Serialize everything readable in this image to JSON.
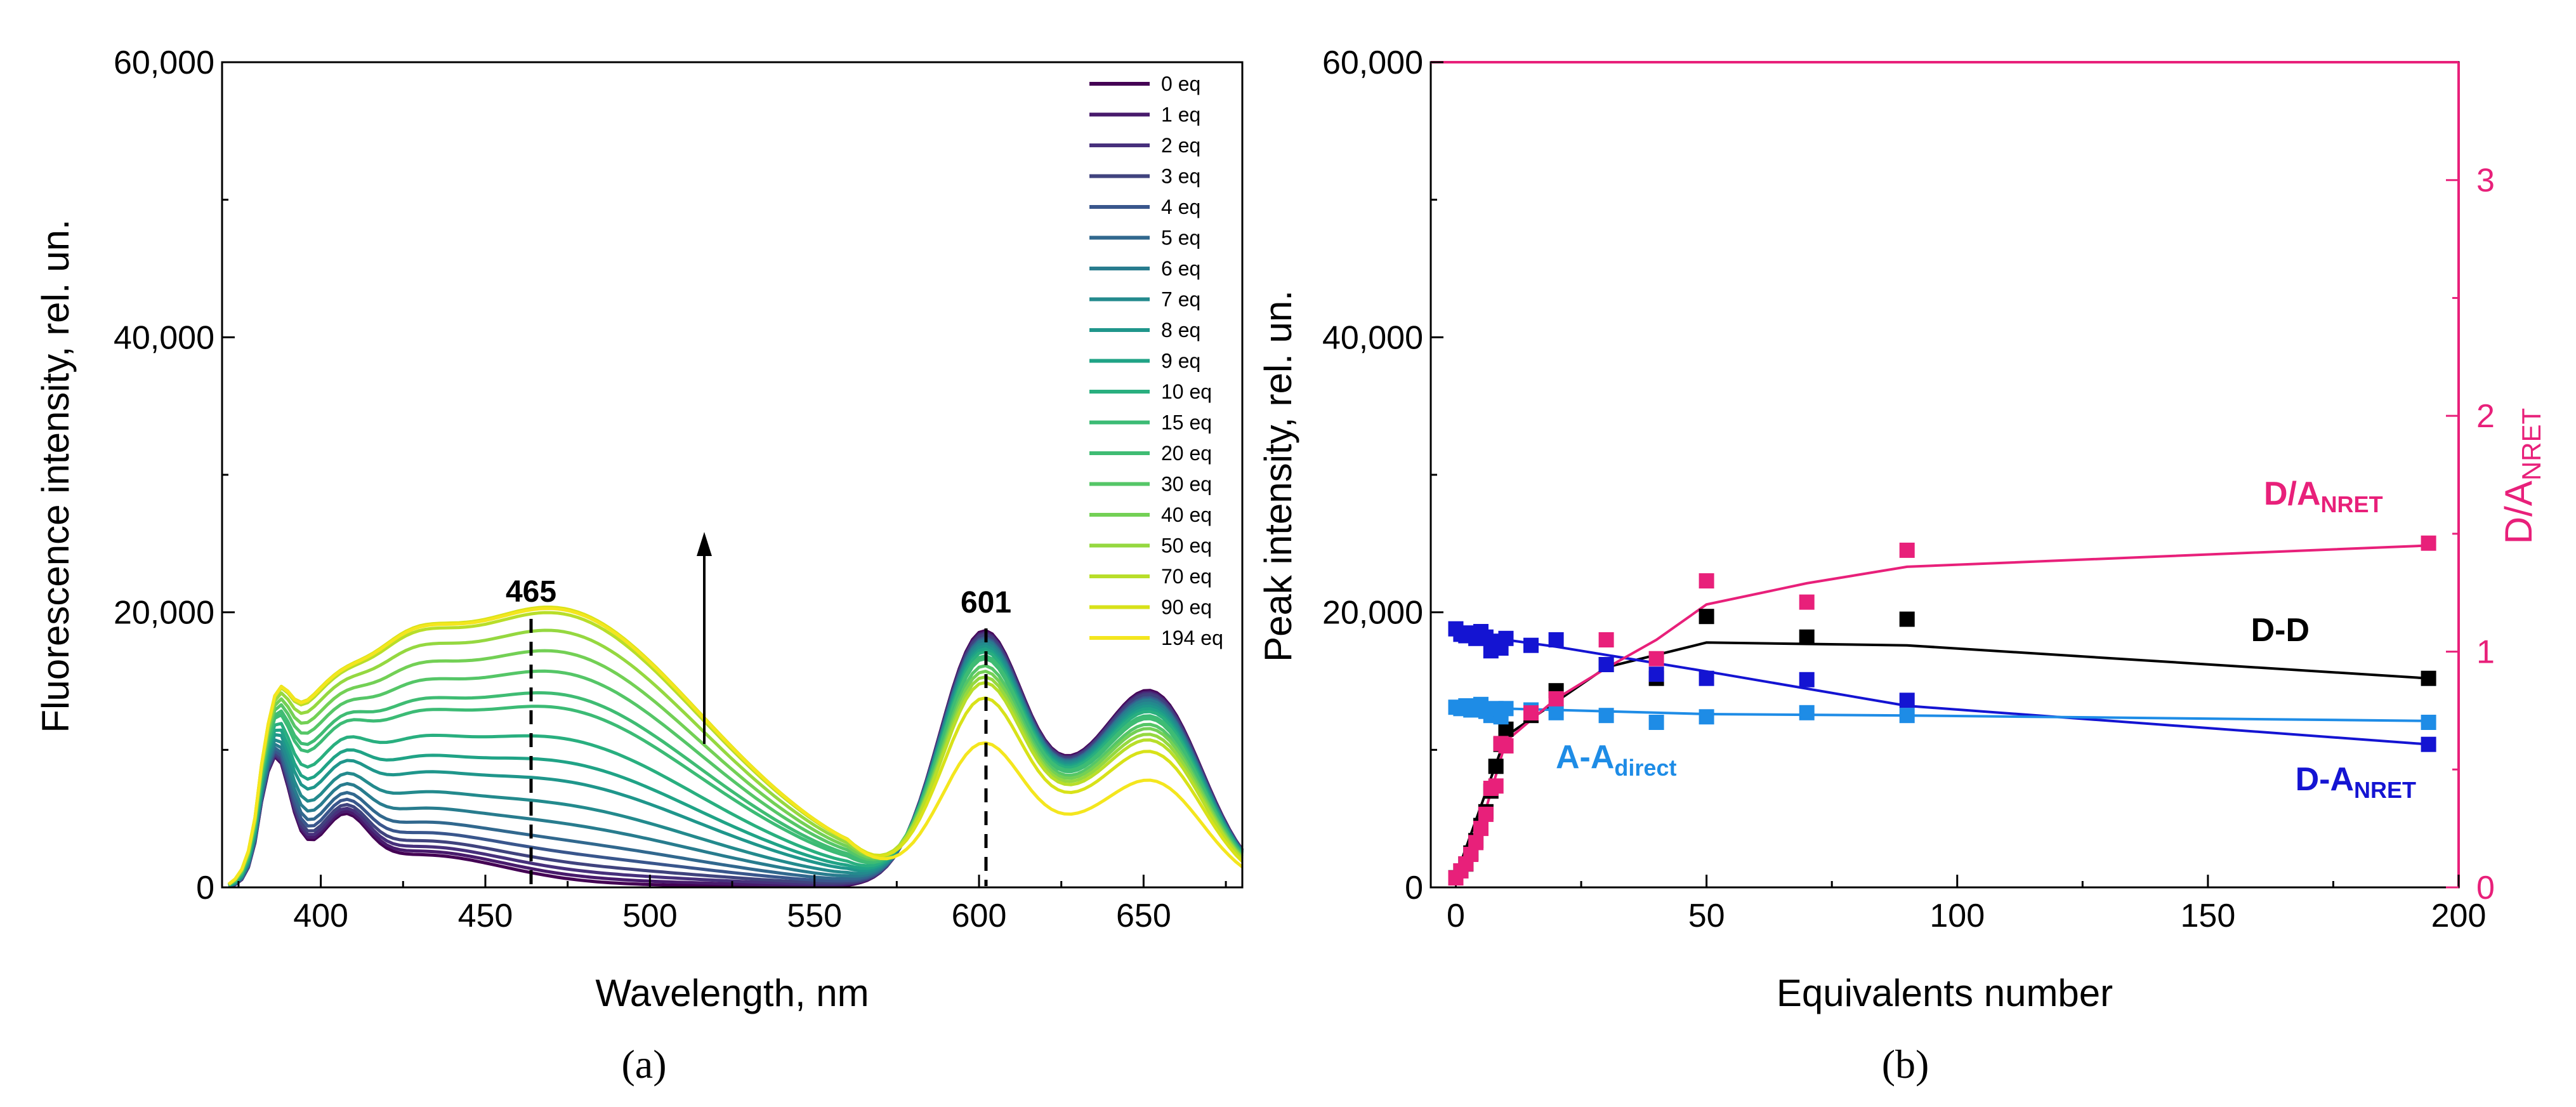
{
  "panel_a": {
    "label": "(a)",
    "chart_data": {
      "type": "line",
      "xlabel": "Wavelength, nm",
      "ylabel": "Fluorescence intensity, rel. un.",
      "xlim": [
        370,
        680
      ],
      "ylim": [
        0,
        60000
      ],
      "xticks": [
        "400",
        "450",
        "500",
        "550",
        "600",
        "650"
      ],
      "yticks": [
        "0",
        "20,000",
        "40,000",
        "60,000"
      ],
      "legend_position": "top-right",
      "annotations": [
        "465",
        "601"
      ],
      "series": [
        {
          "name": "0 eq",
          "color": "#440154",
          "peak465": 200,
          "peak601": 18300,
          "peak653": 13800
        },
        {
          "name": "1 eq",
          "color": "#481a6c",
          "peak465": 500,
          "peak601": 18200,
          "peak653": 13700
        },
        {
          "name": "2 eq",
          "color": "#47307c",
          "peak465": 900,
          "peak601": 18100,
          "peak653": 13600
        },
        {
          "name": "3 eq",
          "color": "#40437e",
          "peak465": 1400,
          "peak601": 18000,
          "peak653": 13500
        },
        {
          "name": "4 eq",
          "color": "#39568c",
          "peak465": 2100,
          "peak601": 17800,
          "peak653": 13300
        },
        {
          "name": "5 eq",
          "color": "#31688e",
          "peak465": 3000,
          "peak601": 17700,
          "peak653": 13200
        },
        {
          "name": "6 eq",
          "color": "#287c8e",
          "peak465": 4200,
          "peak601": 17600,
          "peak653": 13100
        },
        {
          "name": "7 eq",
          "color": "#238a8d",
          "peak465": 5600,
          "peak601": 17400,
          "peak653": 12900
        },
        {
          "name": "8 eq",
          "color": "#1f968b",
          "peak465": 7300,
          "peak601": 17200,
          "peak653": 12700
        },
        {
          "name": "9 eq",
          "color": "#20a386",
          "peak465": 8700,
          "peak601": 17000,
          "peak653": 12500
        },
        {
          "name": "10 eq",
          "color": "#29af7f",
          "peak465": 10400,
          "peak601": 16800,
          "peak653": 12300
        },
        {
          "name": "15 eq",
          "color": "#3cbb75",
          "peak465": 12600,
          "peak601": 16500,
          "peak653": 12000
        },
        {
          "name": "20 eq",
          "color": "#3fbc73",
          "peak465": 13600,
          "peak601": 16300,
          "peak653": 11800
        },
        {
          "name": "30 eq",
          "color": "#55c667",
          "peak465": 15200,
          "peak601": 15800,
          "peak653": 11400
        },
        {
          "name": "40 eq",
          "color": "#73d055",
          "peak465": 16700,
          "peak601": 15400,
          "peak653": 11100
        },
        {
          "name": "50 eq",
          "color": "#95d840",
          "peak465": 18200,
          "peak601": 15000,
          "peak653": 10700
        },
        {
          "name": "70 eq",
          "color": "#b8de29",
          "peak465": 19500,
          "peak601": 14600,
          "peak653": 10300
        },
        {
          "name": "90 eq",
          "color": "#d8e219",
          "peak465": 19900,
          "peak601": 13500,
          "peak653": 9500
        },
        {
          "name": "194 eq",
          "color": "#f4e61e",
          "peak465": 19800,
          "peak601": 10300,
          "peak653": 7500
        }
      ]
    }
  },
  "panel_b": {
    "label": "(b)",
    "chart_data": {
      "type": "scatter",
      "xlabel": "Equivalents number",
      "ylabel": "Peak intensity, rel. un.",
      "y2label_main": "D/A",
      "y2label_sub": "NRET",
      "xlim": [
        -5,
        200
      ],
      "ylim": [
        0,
        60000
      ],
      "y2lim": [
        0,
        3.5
      ],
      "xticks": [
        "0",
        "50",
        "100",
        "150",
        "200"
      ],
      "yticks": [
        "0",
        "20,000",
        "40,000",
        "60,000"
      ],
      "y2ticks": [
        "0",
        "1",
        "2",
        "3"
      ],
      "series": [
        {
          "name": "D-D",
          "label_main": "D-D",
          "label_sub": "",
          "color": "#000000",
          "axis": "left",
          "x": [
            0,
            1,
            2,
            3,
            4,
            5,
            6,
            7,
            8,
            9,
            10,
            15,
            20,
            30,
            40,
            50,
            70,
            90,
            194
          ],
          "y": [
            700,
            1200,
            1700,
            2500,
            3400,
            4500,
            5500,
            7000,
            8800,
            10400,
            11500,
            12500,
            14300,
            16200,
            15200,
            19700,
            18200,
            19500,
            15200
          ],
          "line_x": [
            0,
            10,
            30,
            50,
            90,
            194
          ],
          "line_y": [
            800,
            11000,
            16000,
            17800,
            17600,
            15200
          ]
        },
        {
          "name": "D-A NRET",
          "label_main": "D-A",
          "label_sub": "NRET",
          "color": "#1414d2",
          "axis": "left",
          "x": [
            0,
            1,
            2,
            3,
            4,
            5,
            6,
            7,
            8,
            9,
            10,
            15,
            20,
            30,
            40,
            50,
            70,
            90,
            194
          ],
          "y": [
            18800,
            18400,
            18300,
            18500,
            18100,
            18600,
            18200,
            17200,
            17900,
            17400,
            18100,
            17600,
            18000,
            16200,
            15500,
            15200,
            15100,
            13600,
            10400
          ],
          "line_x": [
            0,
            10,
            20,
            50,
            90,
            194
          ],
          "line_y": [
            18600,
            18000,
            17500,
            15700,
            13200,
            10400
          ]
        },
        {
          "name": "A-A direct",
          "label_main": "A-A",
          "label_sub": "direct",
          "color": "#1e8ce6",
          "axis": "left",
          "x": [
            0,
            1,
            2,
            3,
            4,
            5,
            6,
            7,
            8,
            9,
            10,
            15,
            20,
            30,
            40,
            50,
            70,
            90,
            194
          ],
          "y": [
            13100,
            13000,
            13200,
            12900,
            13100,
            13300,
            12800,
            12500,
            13000,
            12400,
            13000,
            12900,
            12700,
            12500,
            12000,
            12400,
            12700,
            12500,
            12000
          ],
          "line_x": [
            0,
            20,
            50,
            90,
            194
          ],
          "line_y": [
            13100,
            12900,
            12600,
            12500,
            12100
          ]
        },
        {
          "name": "D/A NRET",
          "label_main": "D/A",
          "label_sub": "NRET",
          "color": "#e8207a",
          "axis": "right",
          "x": [
            0,
            1,
            2,
            3,
            4,
            5,
            6,
            7,
            8,
            9,
            10,
            15,
            20,
            30,
            40,
            50,
            70,
            90,
            194
          ],
          "y": [
            0.04,
            0.07,
            0.1,
            0.14,
            0.19,
            0.25,
            0.31,
            0.42,
            0.43,
            0.61,
            0.6,
            0.74,
            0.8,
            1.05,
            0.97,
            1.3,
            1.21,
            1.43,
            1.46
          ],
          "line_x": [
            0,
            5,
            10,
            20,
            30,
            40,
            50,
            70,
            90,
            194
          ],
          "line_y": [
            0.04,
            0.26,
            0.62,
            0.8,
            0.93,
            1.05,
            1.2,
            1.29,
            1.36,
            1.45
          ]
        }
      ]
    }
  }
}
